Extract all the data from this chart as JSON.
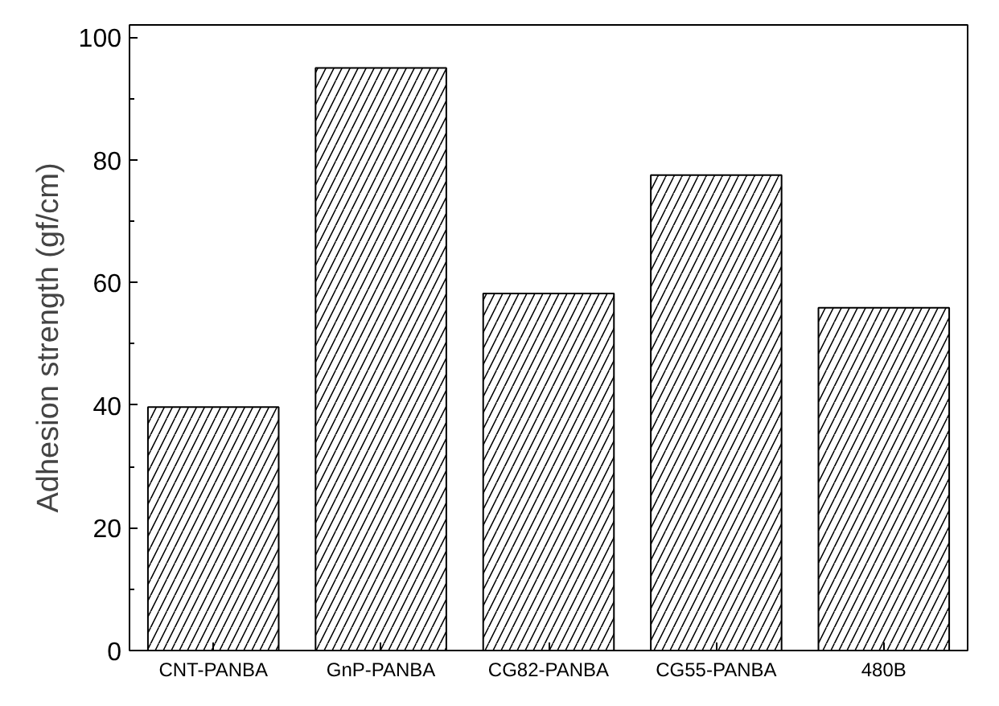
{
  "chart_data": {
    "type": "bar",
    "ylabel": "Adhesion strength (gf/cm)",
    "categories": [
      "CNT-PANBA",
      "GnP-PANBA",
      "CG82-PANBA",
      "CG55-PANBA",
      "480B"
    ],
    "values": [
      39.7,
      95.0,
      58.2,
      77.5,
      55.9
    ],
    "color": "#000000",
    "ylim": [
      0,
      102
    ],
    "yticks": [
      0,
      20,
      40,
      60,
      80,
      100
    ],
    "grid": false
  }
}
